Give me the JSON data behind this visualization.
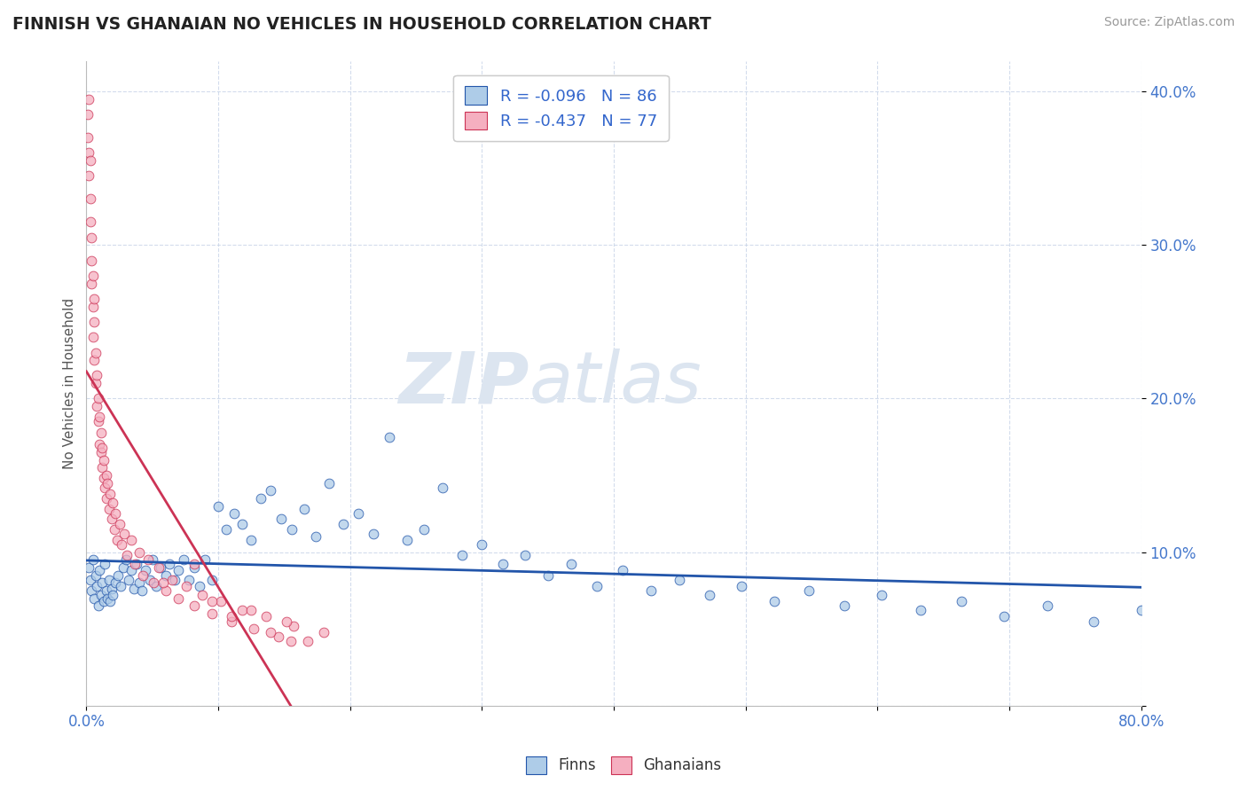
{
  "title": "FINNISH VS GHANAIAN NO VEHICLES IN HOUSEHOLD CORRELATION CHART",
  "source": "Source: ZipAtlas.com",
  "ylabel": "No Vehicles in Household",
  "xmin": 0.0,
  "xmax": 0.8,
  "ymin": 0.0,
  "ymax": 0.42,
  "yticks": [
    0.0,
    0.1,
    0.2,
    0.3,
    0.4
  ],
  "ytick_labels_right": [
    "",
    "10.0%",
    "20.0%",
    "30.0%",
    "40.0%"
  ],
  "finn_R": -0.096,
  "finn_N": 86,
  "ghana_R": -0.437,
  "ghana_N": 77,
  "finn_color": "#aecce8",
  "ghana_color": "#f5afc0",
  "finn_line_color": "#2255aa",
  "ghana_line_color": "#cc3355",
  "watermark_zip": "ZIP",
  "watermark_atlas": "atlas",
  "watermark_color": "#dce5f0",
  "finn_scatter_x": [
    0.002,
    0.003,
    0.004,
    0.005,
    0.006,
    0.007,
    0.008,
    0.009,
    0.01,
    0.011,
    0.012,
    0.013,
    0.014,
    0.015,
    0.016,
    0.017,
    0.018,
    0.019,
    0.02,
    0.022,
    0.024,
    0.026,
    0.028,
    0.03,
    0.032,
    0.034,
    0.036,
    0.038,
    0.04,
    0.042,
    0.045,
    0.048,
    0.05,
    0.053,
    0.056,
    0.06,
    0.063,
    0.067,
    0.07,
    0.074,
    0.078,
    0.082,
    0.086,
    0.09,
    0.095,
    0.1,
    0.106,
    0.112,
    0.118,
    0.125,
    0.132,
    0.14,
    0.148,
    0.156,
    0.165,
    0.174,
    0.184,
    0.195,
    0.206,
    0.218,
    0.23,
    0.243,
    0.256,
    0.27,
    0.285,
    0.3,
    0.316,
    0.333,
    0.35,
    0.368,
    0.387,
    0.407,
    0.428,
    0.45,
    0.473,
    0.497,
    0.522,
    0.548,
    0.575,
    0.603,
    0.633,
    0.664,
    0.696,
    0.729,
    0.764,
    0.8
  ],
  "finn_scatter_y": [
    0.09,
    0.082,
    0.075,
    0.095,
    0.07,
    0.085,
    0.078,
    0.065,
    0.088,
    0.072,
    0.08,
    0.068,
    0.092,
    0.075,
    0.07,
    0.082,
    0.068,
    0.076,
    0.072,
    0.08,
    0.085,
    0.078,
    0.09,
    0.095,
    0.082,
    0.088,
    0.076,
    0.092,
    0.08,
    0.075,
    0.088,
    0.082,
    0.095,
    0.078,
    0.09,
    0.085,
    0.092,
    0.082,
    0.088,
    0.095,
    0.082,
    0.09,
    0.078,
    0.095,
    0.082,
    0.13,
    0.115,
    0.125,
    0.118,
    0.108,
    0.135,
    0.14,
    0.122,
    0.115,
    0.128,
    0.11,
    0.145,
    0.118,
    0.125,
    0.112,
    0.175,
    0.108,
    0.115,
    0.142,
    0.098,
    0.105,
    0.092,
    0.098,
    0.085,
    0.092,
    0.078,
    0.088,
    0.075,
    0.082,
    0.072,
    0.078,
    0.068,
    0.075,
    0.065,
    0.072,
    0.062,
    0.068,
    0.058,
    0.065,
    0.055,
    0.062
  ],
  "ghana_scatter_x": [
    0.001,
    0.001,
    0.002,
    0.002,
    0.002,
    0.003,
    0.003,
    0.003,
    0.004,
    0.004,
    0.004,
    0.005,
    0.005,
    0.005,
    0.006,
    0.006,
    0.006,
    0.007,
    0.007,
    0.008,
    0.008,
    0.009,
    0.009,
    0.01,
    0.01,
    0.011,
    0.011,
    0.012,
    0.012,
    0.013,
    0.013,
    0.014,
    0.015,
    0.015,
    0.016,
    0.017,
    0.018,
    0.019,
    0.02,
    0.021,
    0.022,
    0.023,
    0.025,
    0.027,
    0.029,
    0.031,
    0.034,
    0.037,
    0.04,
    0.043,
    0.047,
    0.051,
    0.055,
    0.06,
    0.065,
    0.07,
    0.076,
    0.082,
    0.088,
    0.095,
    0.102,
    0.11,
    0.118,
    0.127,
    0.136,
    0.146,
    0.157,
    0.168,
    0.18,
    0.152,
    0.058,
    0.082,
    0.095,
    0.11,
    0.125,
    0.14,
    0.155
  ],
  "ghana_scatter_y": [
    0.385,
    0.37,
    0.345,
    0.395,
    0.36,
    0.315,
    0.33,
    0.355,
    0.29,
    0.305,
    0.275,
    0.26,
    0.28,
    0.24,
    0.25,
    0.225,
    0.265,
    0.21,
    0.23,
    0.195,
    0.215,
    0.185,
    0.2,
    0.17,
    0.188,
    0.165,
    0.178,
    0.155,
    0.168,
    0.148,
    0.16,
    0.142,
    0.15,
    0.135,
    0.145,
    0.128,
    0.138,
    0.122,
    0.132,
    0.115,
    0.125,
    0.108,
    0.118,
    0.105,
    0.112,
    0.098,
    0.108,
    0.092,
    0.1,
    0.085,
    0.095,
    0.08,
    0.09,
    0.075,
    0.082,
    0.07,
    0.078,
    0.065,
    0.072,
    0.06,
    0.068,
    0.055,
    0.062,
    0.05,
    0.058,
    0.045,
    0.052,
    0.042,
    0.048,
    0.055,
    0.08,
    0.092,
    0.068,
    0.058,
    0.062,
    0.048,
    0.042
  ]
}
